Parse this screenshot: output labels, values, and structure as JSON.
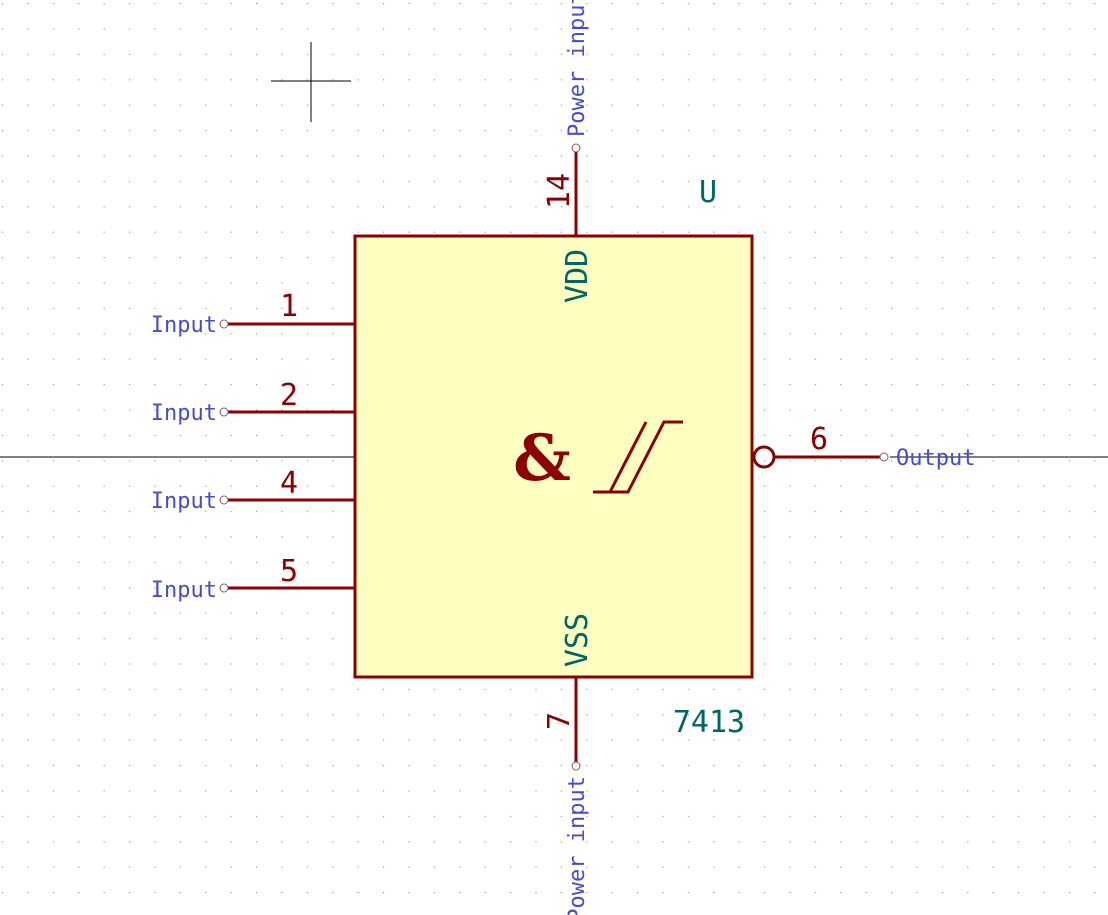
{
  "component": {
    "reference": "U",
    "value": "7413",
    "function_symbol": "&",
    "body_fill": "#ffffc2",
    "outline_color": "#8b0000",
    "pin_type_color": "#4a4acc",
    "label_color": "#006666",
    "pins": {
      "in1": {
        "number": "1",
        "type": "Input"
      },
      "in2": {
        "number": "2",
        "type": "Input"
      },
      "in4": {
        "number": "4",
        "type": "Input"
      },
      "in5": {
        "number": "5",
        "type": "Input"
      },
      "out": {
        "number": "6",
        "type": "Output",
        "inverted": true
      },
      "vdd": {
        "number": "14",
        "name": "VDD",
        "type": "Power input"
      },
      "vss": {
        "number": "7",
        "name": "VSS",
        "type": "Power input"
      }
    }
  }
}
